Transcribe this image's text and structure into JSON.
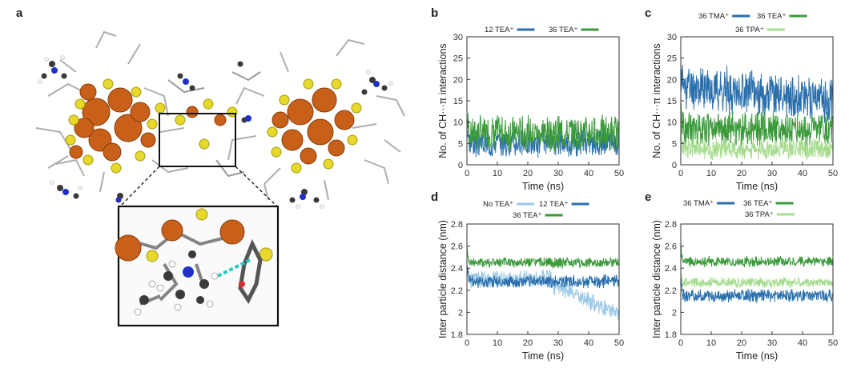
{
  "panels": {
    "a": "a",
    "b": "b",
    "c": "c",
    "d": "d",
    "e": "e"
  },
  "colors": {
    "blue": "#2a6fad",
    "green": "#3a9a3a",
    "lightblue": "#9cc9e6",
    "lightgreen": "#a6dc8e",
    "copper": "#c8601a",
    "sulfur": "#e8d82a",
    "teal": "#2bc8c0"
  },
  "chart_data": [
    {
      "id": "b",
      "type": "line",
      "xlabel": "Time (ns)",
      "ylabel": "No. of CH···π interactions",
      "xlim": [
        0,
        50
      ],
      "ylim": [
        0,
        30
      ],
      "xticks": [
        0,
        10,
        20,
        30,
        40,
        50
      ],
      "yticks": [
        0,
        5,
        10,
        15,
        20,
        25,
        30
      ],
      "legend_rows": [
        [
          "s0",
          "s1"
        ]
      ],
      "series": [
        {
          "name": "12 TEA⁺",
          "color": "blue",
          "mean": 5.2,
          "amp": 2.8,
          "shape": "flat",
          "seed": 3
        },
        {
          "name": "36 TEA⁺",
          "color": "green",
          "mean": 7.5,
          "amp": 3.5,
          "shape": "flat",
          "seed": 7
        }
      ]
    },
    {
      "id": "c",
      "type": "line",
      "xlabel": "Time (ns)",
      "ylabel": "No. of CH···π interactions",
      "xlim": [
        0,
        50
      ],
      "ylim": [
        0,
        30
      ],
      "xticks": [
        0,
        10,
        20,
        30,
        40,
        50
      ],
      "yticks": [
        0,
        5,
        10,
        15,
        20,
        25,
        30
      ],
      "legend_rows": [
        [
          "s0",
          "s1"
        ],
        [
          "s2"
        ]
      ],
      "series": [
        {
          "name": "36 TMA⁺",
          "color": "blue",
          "mean": 16.5,
          "amp": 4.5,
          "shape": "decline",
          "seed": 11
        },
        {
          "name": "36 TEA⁺",
          "color": "green",
          "mean": 8.5,
          "amp": 3.5,
          "shape": "flat",
          "seed": 19
        },
        {
          "name": "36 TPA⁺",
          "color": "lightgreen",
          "mean": 3.8,
          "amp": 2.2,
          "shape": "flat",
          "seed": 23
        }
      ]
    },
    {
      "id": "d",
      "type": "line",
      "xlabel": "Time (ns)",
      "ylabel": "Inter particle distance (nm)",
      "xlim": [
        0,
        50
      ],
      "ylim": [
        1.8,
        2.8
      ],
      "xticks": [
        0,
        10,
        20,
        30,
        40,
        50
      ],
      "yticks": [
        1.8,
        2.0,
        2.2,
        2.4,
        2.6,
        2.8
      ],
      "ytick_labels": [
        "1.8",
        "2",
        "2.2",
        "2.4",
        "2.6",
        "2.8"
      ],
      "legend_rows": [
        [
          "s0",
          "s1"
        ],
        [
          "s2"
        ]
      ],
      "series": [
        {
          "name": "No TEA⁺",
          "color": "lightblue",
          "mean": 2.3,
          "amp": 0.07,
          "shape": "drop",
          "seed": 31
        },
        {
          "name": "12 TEA⁺",
          "color": "blue",
          "mean": 2.28,
          "amp": 0.05,
          "shape": "flat",
          "seed": 37
        },
        {
          "name": "36 TEA⁺",
          "color": "green",
          "mean": 2.45,
          "amp": 0.04,
          "shape": "flat",
          "seed": 41
        }
      ]
    },
    {
      "id": "e",
      "type": "line",
      "xlabel": "Time (ns)",
      "ylabel": "Inter particle distance (nm)",
      "xlim": [
        0,
        50
      ],
      "ylim": [
        1.8,
        2.8
      ],
      "xticks": [
        0,
        10,
        20,
        30,
        40,
        50
      ],
      "yticks": [
        1.8,
        2.0,
        2.2,
        2.4,
        2.6,
        2.8
      ],
      "ytick_labels": [
        "1.8",
        "2",
        "2.2",
        "2.4",
        "2.6",
        "2.8"
      ],
      "legend_rows": [
        [
          "s0",
          "s1"
        ],
        [
          "s2"
        ]
      ],
      "series": [
        {
          "name": "36 TMA⁺",
          "color": "blue",
          "mean": 2.15,
          "amp": 0.05,
          "shape": "flat",
          "seed": 43
        },
        {
          "name": "36 TEA⁺",
          "color": "green",
          "mean": 2.46,
          "amp": 0.04,
          "shape": "flat",
          "seed": 47
        },
        {
          "name": "36 TPA⁺",
          "color": "lightgreen",
          "mean": 2.27,
          "amp": 0.04,
          "shape": "flat",
          "seed": 53
        }
      ]
    }
  ]
}
